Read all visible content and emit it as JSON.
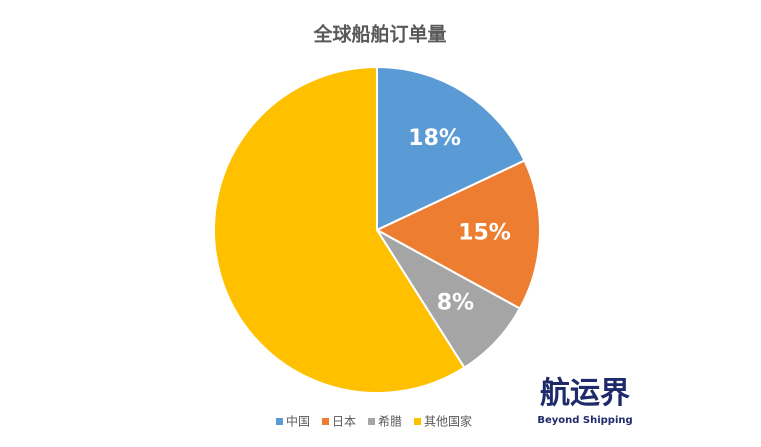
{
  "chart_data": {
    "type": "pie",
    "title": "全球船舶订单量",
    "categories": [
      "中国",
      "日本",
      "希腊",
      "其他国家"
    ],
    "values": [
      18,
      15,
      8,
      59
    ],
    "value_labels": [
      "18%",
      "15%",
      "8%",
      null
    ],
    "colors": [
      "#5b9bd5",
      "#ed7d31",
      "#a5a5a5",
      "#ffc000"
    ],
    "legend": "bottom",
    "watermark": {
      "title": "航运界",
      "subtitle": "Beyond Shipping"
    }
  }
}
